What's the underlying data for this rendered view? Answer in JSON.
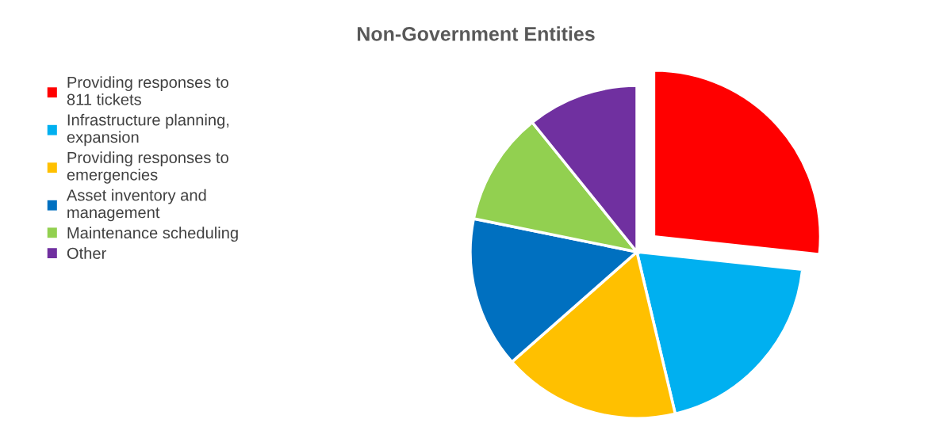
{
  "chart_data": {
    "type": "pie",
    "title": "Non-Government Entities",
    "categories": [
      "Providing responses to 811 tickets",
      "Infrastructure planning, expansion",
      "Providing responses to emergencies",
      "Asset inventory and management",
      "Maintenance scheduling",
      "Other"
    ],
    "values": [
      26.7,
      19.6,
      17.2,
      14.7,
      11.0,
      10.8
    ],
    "colors": [
      "#ff0000",
      "#00b0f0",
      "#ffc000",
      "#0070c0",
      "#92d050",
      "#7030a0"
    ],
    "legend": "left"
  }
}
